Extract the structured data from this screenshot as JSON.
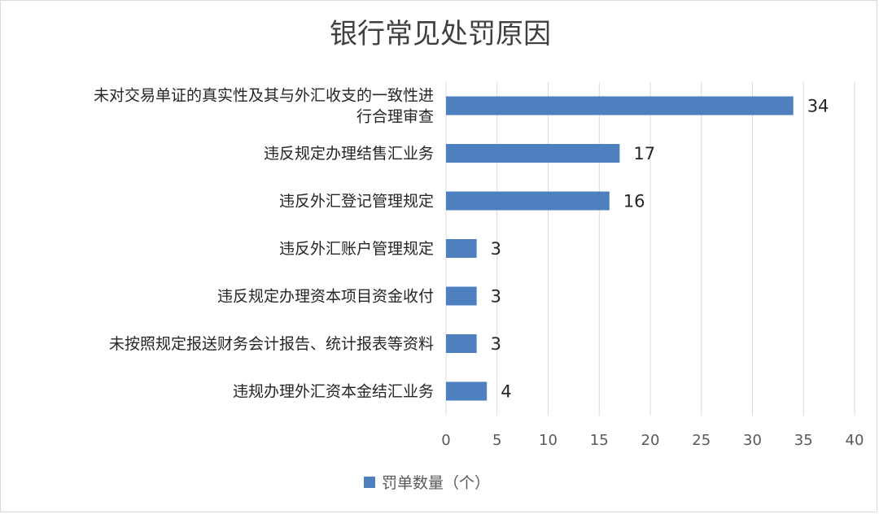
{
  "chart_data": {
    "type": "bar",
    "orientation": "horizontal",
    "title": "银行常见处罚原因",
    "categories": [
      "未对交易单证的真实性及其与外汇收支的一致性进行合理审查",
      "违反规定办理结售汇业务",
      "违反外汇登记管理规定",
      "违反外汇账户管理规定",
      "违反规定办理资本项目资金收付",
      "未按照规定报送财务会计报告、统计报表等资料",
      "违规办理外汇资本金结汇业务"
    ],
    "category_lines": [
      [
        "未对交易单证的真实性及其与外汇收支的一致性进",
        "行合理审查"
      ],
      [
        "违反规定办理结售汇业务"
      ],
      [
        "违反外汇登记管理规定"
      ],
      [
        "违反外汇账户管理规定"
      ],
      [
        "违反规定办理资本项目资金收付"
      ],
      [
        "未按照规定报送财务会计报告、统计报表等资料"
      ],
      [
        "违规办理外汇资本金结汇业务"
      ]
    ],
    "series": [
      {
        "name": "罚单数量（个）",
        "values": [
          34,
          17,
          16,
          3,
          3,
          3,
          4
        ],
        "color": "#4e7fbf"
      }
    ],
    "xlim": [
      0,
      40
    ],
    "x_ticks": [
      0,
      5,
      10,
      15,
      20,
      25,
      30,
      35,
      40
    ],
    "grid": "vertical",
    "legend_position": "bottom",
    "gridline_color": "#d9d9d9",
    "text_color": "#262626"
  }
}
